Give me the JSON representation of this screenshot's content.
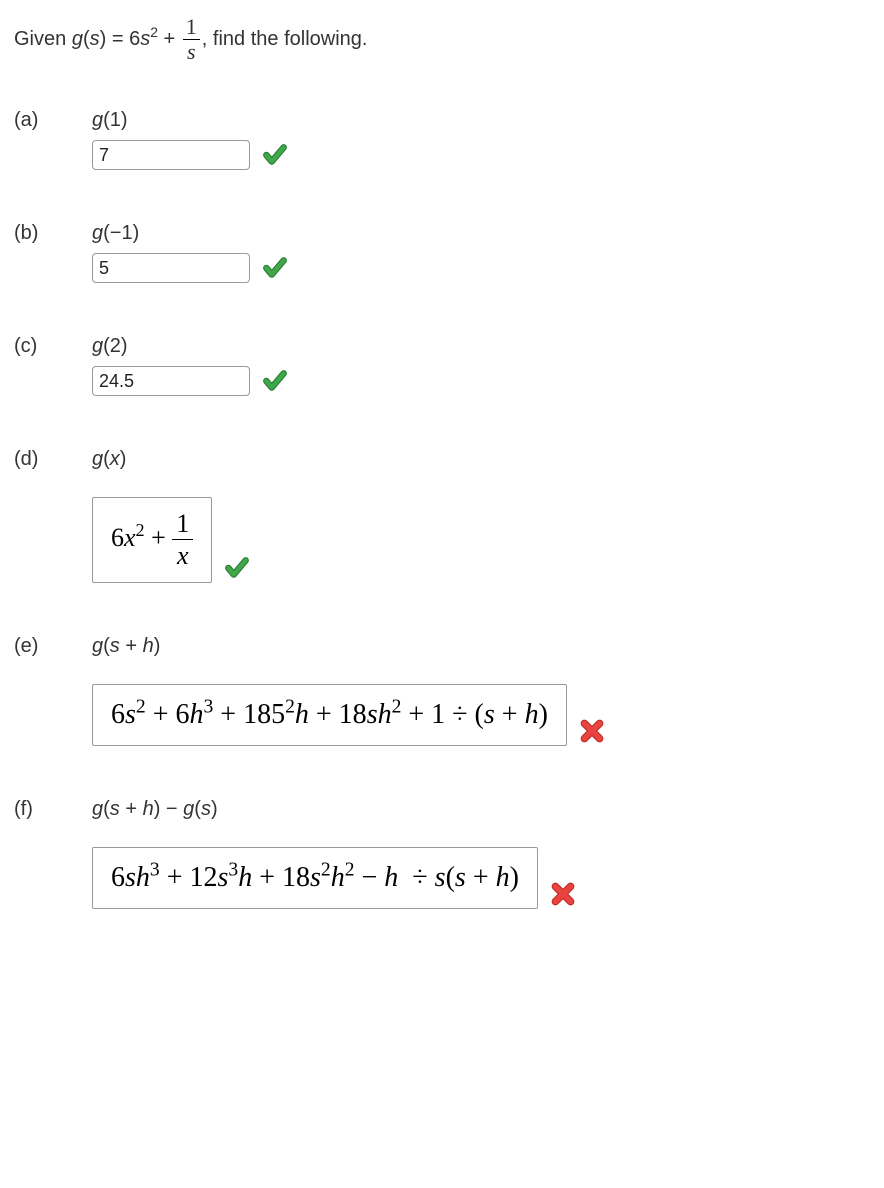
{
  "prompt": {
    "lead": "Given ",
    "func": "g",
    "var": "s",
    "eq": " = 6",
    "sq": "2",
    "plus": " + ",
    "frac_num": "1",
    "frac_den": "s",
    "tail": ", find the following."
  },
  "styles": {
    "body_color": "#333333",
    "body_bg": "#ffffff",
    "input_border": "#999999",
    "expr_font": "Times New Roman",
    "base_font": "Verdana",
    "check_color": "#3ea84a",
    "check_shadow": "#2a7a34",
    "cross_color": "#e8433f",
    "cross_shadow": "#bf2a27"
  },
  "parts": {
    "a": {
      "label": "(a)",
      "q_func": "g",
      "q_arg": "(1)",
      "answer": "7",
      "correct": true,
      "type": "input"
    },
    "b": {
      "label": "(b)",
      "q_func": "g",
      "q_arg": "(−1)",
      "answer": "5",
      "correct": true,
      "type": "input"
    },
    "c": {
      "label": "(c)",
      "q_func": "g",
      "q_arg": "(2)",
      "answer": "24.5",
      "correct": true,
      "type": "input"
    },
    "d": {
      "label": "(d)",
      "q_func": "g",
      "q_arg_html": "(<span class=\"ital\">x</span>)",
      "expr": "6<span class=\"ital\">x</span><span class=\"sup\">2</span> + <span class=\"mfrac\"><span class=\"num\">1</span><span class=\"den\">x</span></span>",
      "correct": true,
      "type": "expr"
    },
    "e": {
      "label": "(e)",
      "q_func": "g",
      "q_arg_html": "(<span class=\"ital\">s</span> + <span class=\"ital\">h</span>)",
      "expr": "6<span class=\"ital\">s</span><span class=\"sup\">2</span> + 6<span class=\"ital\">h</span><span class=\"sup\">3</span> + 185<span class=\"sup\">2</span><span class=\"ital\">h</span> + 18<span class=\"ital\">sh</span><span class=\"sup\">2</span> + 1 ÷ (<span class=\"ital\">s</span> + <span class=\"ital\">h</span>)",
      "correct": false,
      "type": "expr-big"
    },
    "f": {
      "label": "(f)",
      "q_func": "g",
      "q_arg_html": "(<span class=\"ital\">s</span> + <span class=\"ital\">h</span>) − <span class=\"ital\">g</span>(<span class=\"ital\">s</span>)",
      "expr": "6<span class=\"ital\">sh</span><span class=\"sup\">3</span> + 12<span class=\"ital\">s</span><span class=\"sup\">3</span><span class=\"ital\">h</span> + 18<span class=\"ital\">s</span><span class=\"sup\">2</span><span class=\"ital\">h</span><span class=\"sup\">2</span> − <span class=\"ital\">h</span>&nbsp; ÷ <span class=\"ital\">s</span>(<span class=\"ital\">s</span> + <span class=\"ital\">h</span>)",
      "correct": false,
      "type": "expr-big"
    }
  }
}
